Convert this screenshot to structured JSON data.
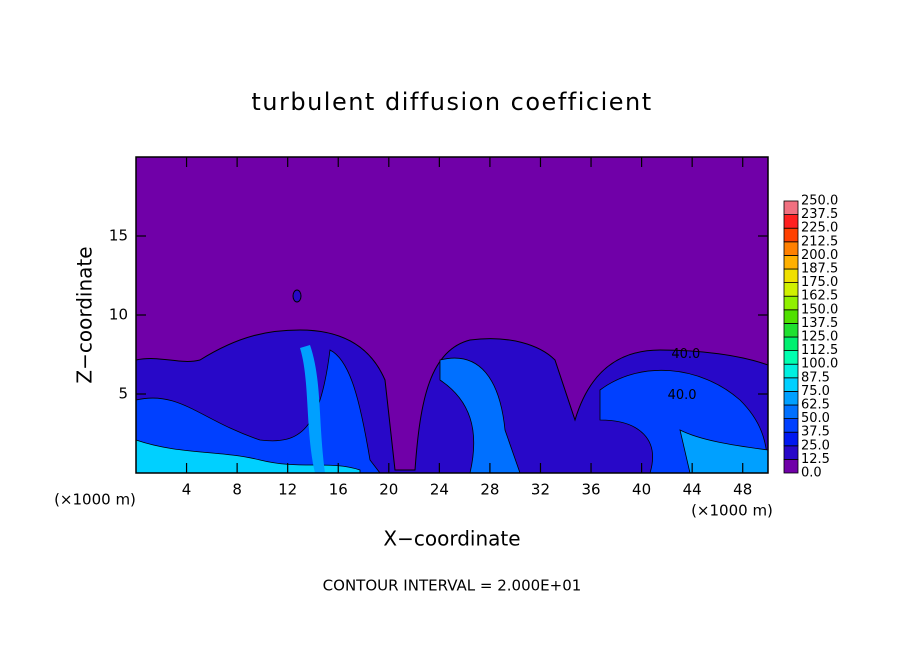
{
  "chart_data": {
    "type": "contour",
    "title": "turbulent diffusion coefficient",
    "xlabel": "X−coordinate",
    "ylabel": "Z−coordinate",
    "x_units": "(×1000 m)",
    "y_units": "(×1000 m)",
    "footer": "CONTOUR INTERVAL = 2.000E+01",
    "xlim": [
      0,
      50
    ],
    "ylim": [
      0,
      20
    ],
    "xticks": [
      4,
      8,
      12,
      16,
      20,
      24,
      28,
      32,
      36,
      40,
      44,
      48
    ],
    "yticks": [
      5,
      10,
      15
    ],
    "annotations": [
      {
        "text": "40.0",
        "x": 43.5,
        "y": 7.5
      },
      {
        "text": "40.0",
        "x": 43.2,
        "y": 4.9
      }
    ],
    "colorbar": {
      "levels": [
        {
          "value": 0,
          "label": "0.0"
        },
        12.5,
        {
          "value": 25,
          "label": "25.0"
        },
        37.5,
        {
          "value": 50,
          "label": "50.0"
        },
        62.5,
        {
          "value": 75,
          "label": "75.0"
        },
        87.5,
        {
          "value": 100,
          "label": "100.0"
        },
        112.5,
        {
          "value": 125,
          "label": "125.0"
        },
        137.5,
        {
          "value": 150,
          "label": "150.0"
        },
        162.5,
        {
          "value": 175,
          "label": "175.0"
        },
        187.5,
        {
          "value": 200,
          "label": "200.0"
        },
        212.5,
        {
          "value": 225,
          "label": "225.0"
        },
        237.5,
        {
          "value": 250,
          "label": "250.0"
        }
      ],
      "colors": [
        "#7000a8",
        "#2808c8",
        "#0018f0",
        "#0040ff",
        "#0070ff",
        "#00a0ff",
        "#00d0ff",
        "#00f0e0",
        "#00ffb0",
        "#00f070",
        "#20e030",
        "#50e000",
        "#90f000",
        "#d0f000",
        "#f0e000",
        "#ffb000",
        "#ff8000",
        "#ff4000",
        "#ff2020",
        "#f07080"
      ]
    }
  }
}
